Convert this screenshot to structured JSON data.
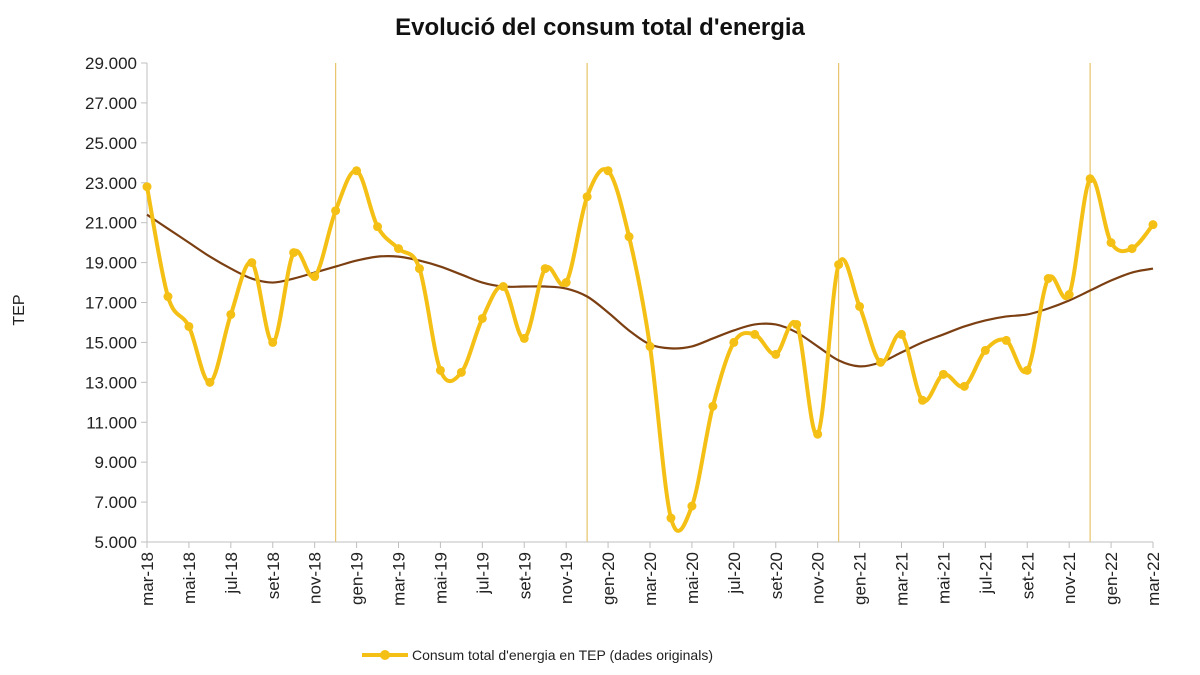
{
  "chart_data": {
    "type": "line",
    "title": "Evolució del consum total d'energia",
    "ylabel": "TEP",
    "xlabel": "",
    "ylim": [
      5000,
      29000
    ],
    "yticks": [
      "29.000",
      "27.000",
      "25.000",
      "23.000",
      "21.000",
      "19.000",
      "17.000",
      "15.000",
      "13.000",
      "11.000",
      "9.000",
      "7.000",
      "5.000"
    ],
    "ytick_values": [
      29000,
      27000,
      25000,
      23000,
      21000,
      19000,
      17000,
      15000,
      13000,
      11000,
      9000,
      7000,
      5000
    ],
    "x": [
      "mar-18",
      "abr-18",
      "mai-18",
      "jun-18",
      "jul-18",
      "ago-18",
      "set-18",
      "oct-18",
      "nov-18",
      "des-18",
      "gen-19",
      "feb-19",
      "mar-19",
      "abr-19",
      "mai-19",
      "jun-19",
      "jul-19",
      "ago-19",
      "set-19",
      "oct-19",
      "nov-19",
      "des-19",
      "gen-20",
      "feb-20",
      "mar-20",
      "abr-20",
      "mai-20",
      "jun-20",
      "jul-20",
      "ago-20",
      "set-20",
      "oct-20",
      "nov-20",
      "des-20",
      "gen-21",
      "feb-21",
      "mar-21",
      "abr-21",
      "mai-21",
      "jun-21",
      "jul-21",
      "ago-21",
      "set-21",
      "oct-21",
      "nov-21",
      "des-21",
      "gen-22",
      "feb-22",
      "mar-22"
    ],
    "xtick_labels": [
      "mar-18",
      "mai-18",
      "jul-18",
      "set-18",
      "nov-18",
      "gen-19",
      "mar-19",
      "mai-19",
      "jul-19",
      "set-19",
      "nov-19",
      "gen-20",
      "mar-20",
      "mai-20",
      "jul-20",
      "set-20",
      "nov-20",
      "gen-21",
      "mar-21",
      "mai-21",
      "jul-21",
      "set-21",
      "nov-21",
      "gen-22",
      "mar-22"
    ],
    "vertical_lines_at": [
      "des-18",
      "des-19",
      "des-20",
      "des-21"
    ],
    "series": [
      {
        "name": "Consum total d'energia en TEP (dades originals)",
        "color": "#F5C016",
        "values": [
          22800,
          17300,
          15800,
          13000,
          16400,
          19000,
          15000,
          19500,
          18300,
          21600,
          23600,
          20800,
          19700,
          18700,
          13600,
          13500,
          16200,
          17800,
          15200,
          18700,
          18000,
          22300,
          23600,
          20300,
          14800,
          6200,
          6800,
          11800,
          15000,
          15400,
          14400,
          15900,
          10400,
          18900,
          16800,
          14000,
          15400,
          12100,
          13400,
          12800,
          14600,
          15100,
          13600,
          18200,
          17400,
          23200,
          20000,
          19700,
          20900
        ],
        "marker": "circle"
      },
      {
        "name": "",
        "color": "#7B3F12",
        "values": [
          21400,
          20700,
          20000,
          19300,
          18700,
          18200,
          18000,
          18200,
          18500,
          18800,
          19100,
          19300,
          19300,
          19100,
          18800,
          18400,
          18000,
          17800,
          17800,
          17800,
          17700,
          17300,
          16500,
          15600,
          14900,
          14700,
          14800,
          15200,
          15600,
          15900,
          15900,
          15500,
          14800,
          14100,
          13800,
          14000,
          14500,
          15000,
          15400,
          15800,
          16100,
          16300,
          16400,
          16700,
          17100,
          17600,
          18100,
          18500,
          18700
        ]
      }
    ],
    "legend_position": "bottom-center",
    "grid": false
  }
}
